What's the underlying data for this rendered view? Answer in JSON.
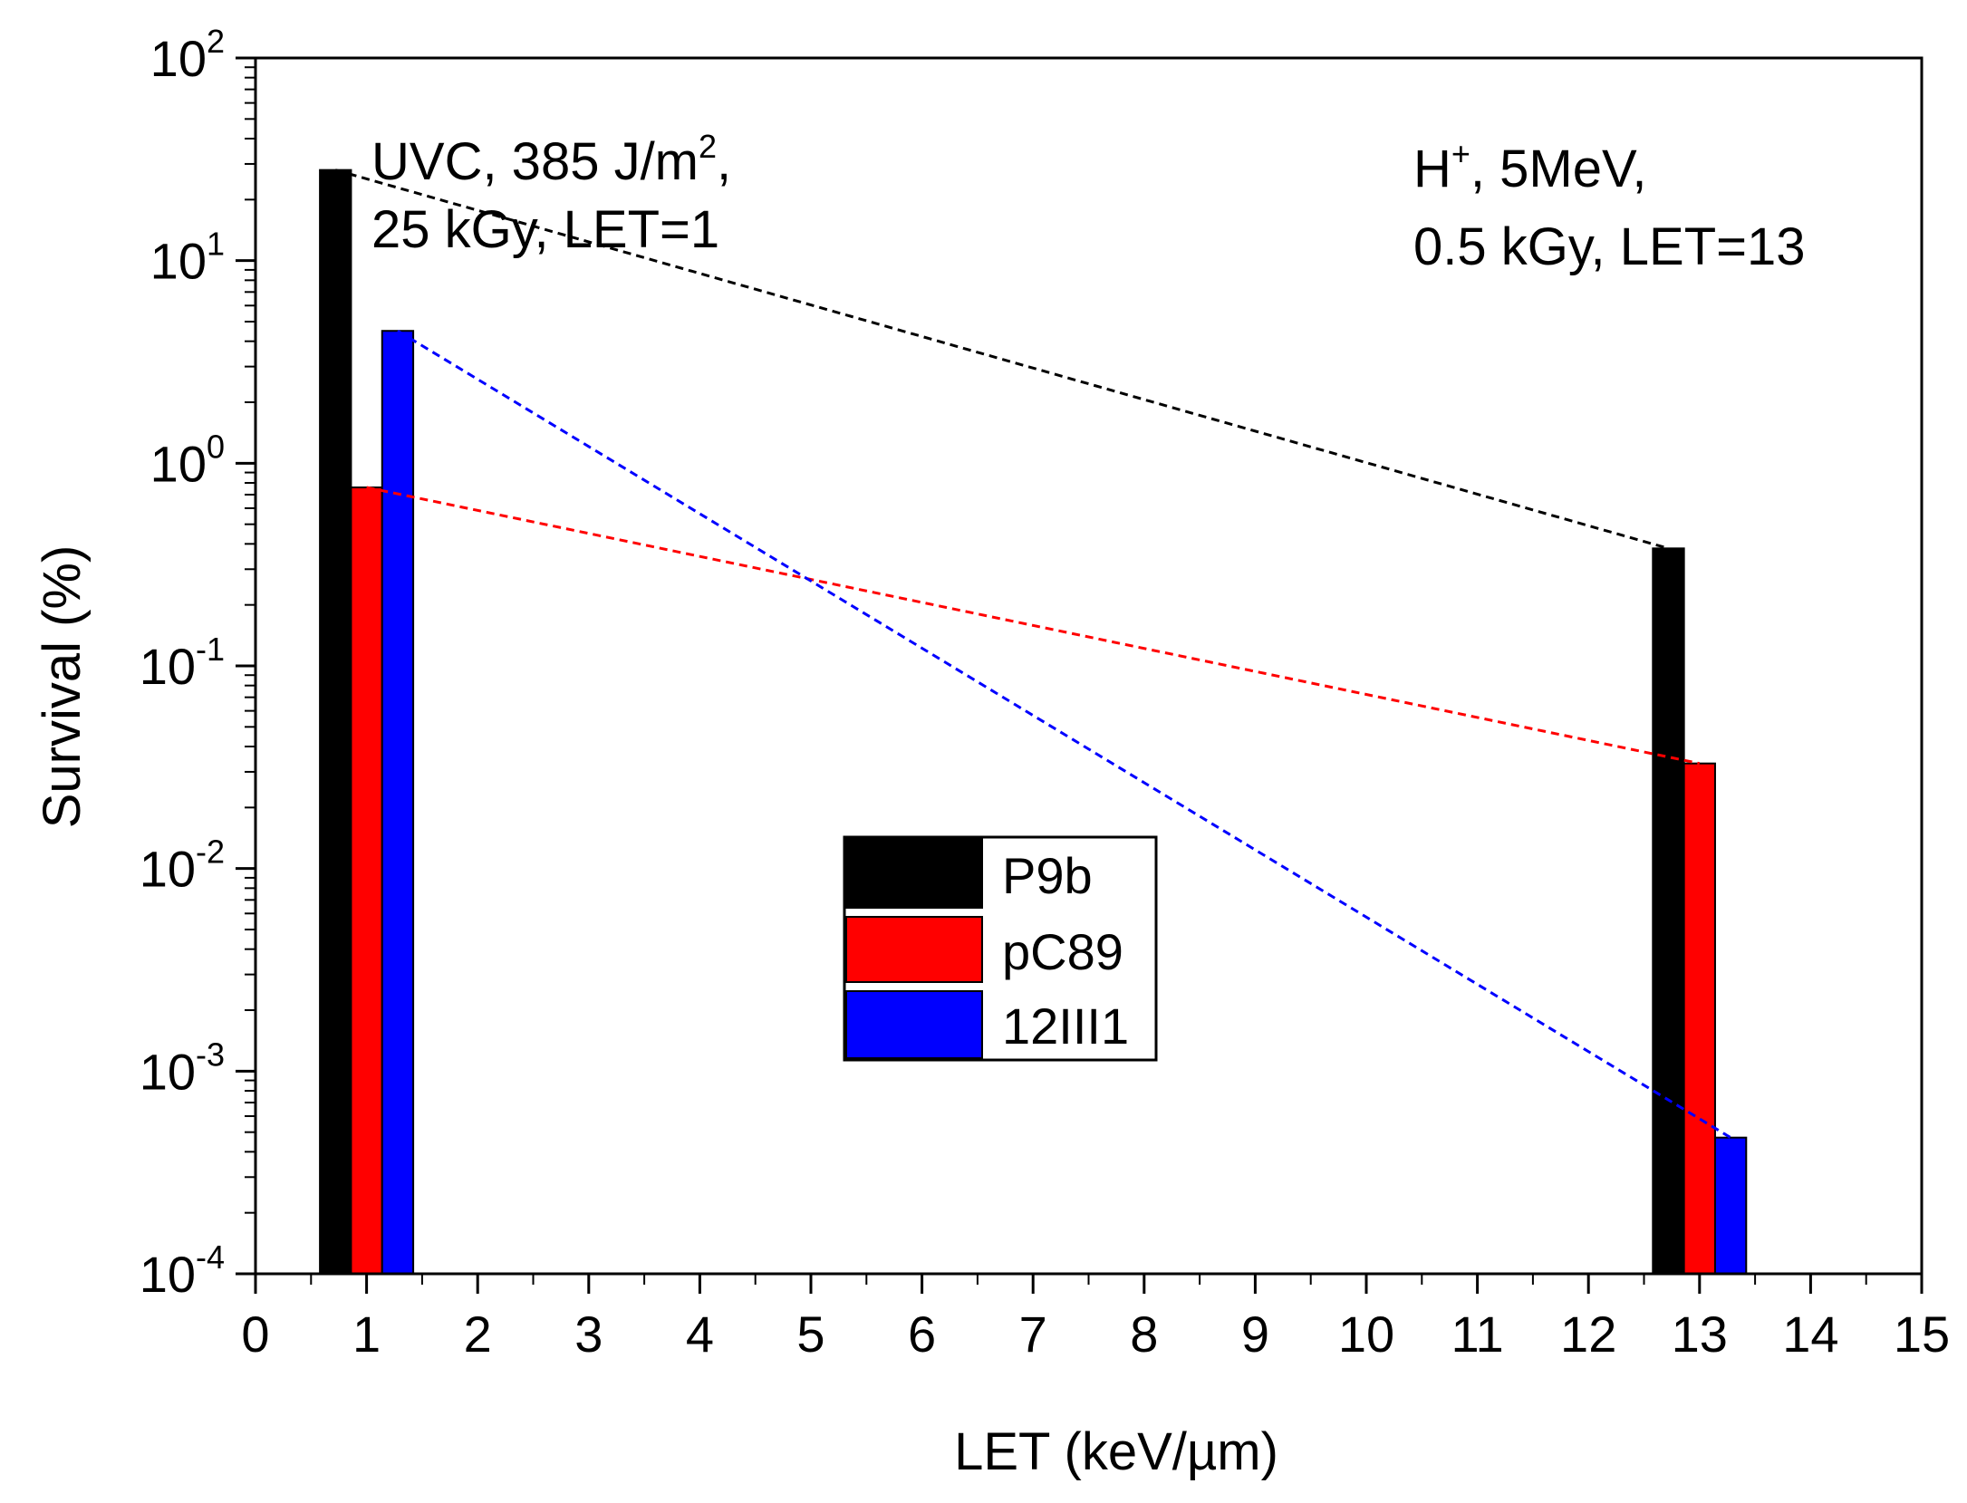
{
  "chart_data": {
    "type": "bar",
    "title": "",
    "xlabel": "LET (keV/µm)",
    "ylabel": "Survival (%)",
    "xlim": [
      0,
      15
    ],
    "ylim": [
      0.0001,
      100
    ],
    "yscale": "log",
    "x_ticks": [
      "0",
      "1",
      "2",
      "3",
      "4",
      "5",
      "6",
      "7",
      "8",
      "9",
      "10",
      "11",
      "12",
      "13",
      "14",
      "15"
    ],
    "y_ticks": [
      {
        "base": "10",
        "exp": "-4",
        "value": 0.0001
      },
      {
        "base": "10",
        "exp": "-3",
        "value": 0.001
      },
      {
        "base": "10",
        "exp": "-2",
        "value": 0.01
      },
      {
        "base": "10",
        "exp": "-1",
        "value": 0.1
      },
      {
        "base": "10",
        "exp": "0",
        "value": 1
      },
      {
        "base": "10",
        "exp": "1",
        "value": 10
      },
      {
        "base": "10",
        "exp": "2",
        "value": 100
      }
    ],
    "groups": [
      1,
      13
    ],
    "series": [
      {
        "name": "P9b",
        "color": "#000000",
        "x": [
          0.72,
          12.72
        ],
        "values": [
          28,
          0.38
        ]
      },
      {
        "name": "pC89",
        "color": "#ff0000",
        "x": [
          1.0,
          13.0
        ],
        "values": [
          0.76,
          0.033
        ]
      },
      {
        "name": "12III1",
        "color": "#0000ff",
        "x": [
          1.28,
          13.28
        ],
        "values": [
          4.5,
          0.00047
        ]
      }
    ],
    "bar_width": 0.28,
    "trend_lines": "dashed, connecting each series' two bars",
    "annotations": [
      {
        "line1": "UVC, 385 J/m",
        "sup1": "2",
        "line1_end": ",",
        "line2": "25 kGy, LET=1"
      },
      {
        "line1_pre": "H",
        "sup1": "+",
        "line1": ", 5MeV,",
        "line2": "0.5 kGy, LET=13"
      }
    ],
    "legend_position": "center"
  }
}
